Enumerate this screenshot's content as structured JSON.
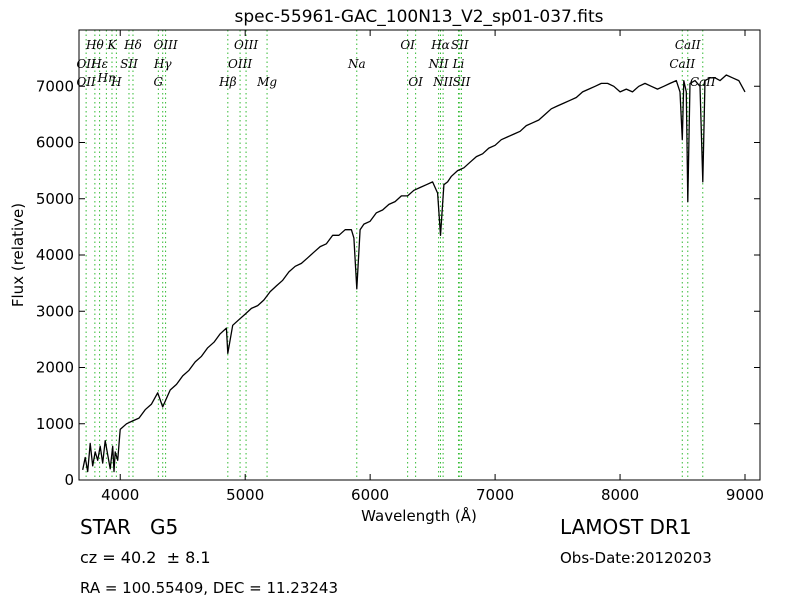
{
  "chart_data": {
    "type": "line",
    "title": "spec-55961-GAC_100N13_V2_sp01-037.fits",
    "xlabel": "Wavelength (Å)",
    "ylabel": "Flux (relative)",
    "xlim": [
      3670,
      9120
    ],
    "ylim": [
      0,
      8000
    ],
    "xticks": [
      4000,
      5000,
      6000,
      7000,
      8000,
      9000
    ],
    "yticks": [
      0,
      1000,
      2000,
      3000,
      4000,
      5000,
      6000,
      7000
    ],
    "grid": false,
    "series": [
      {
        "color": "#000000",
        "x": [
          3700,
          3720,
          3740,
          3760,
          3780,
          3800,
          3820,
          3840,
          3860,
          3880,
          3900,
          3920,
          3940,
          3950,
          3960,
          3980,
          4000,
          4050,
          4100,
          4150,
          4200,
          4250,
          4300,
          4340,
          4400,
          4450,
          4500,
          4550,
          4600,
          4650,
          4700,
          4750,
          4800,
          4850,
          4861,
          4900,
          4950,
          5000,
          5050,
          5100,
          5150,
          5200,
          5250,
          5300,
          5350,
          5400,
          5450,
          5500,
          5550,
          5600,
          5650,
          5700,
          5750,
          5800,
          5850,
          5870,
          5893,
          5920,
          5950,
          6000,
          6050,
          6100,
          6150,
          6200,
          6250,
          6300,
          6350,
          6400,
          6450,
          6500,
          6540,
          6563,
          6590,
          6620,
          6650,
          6700,
          6750,
          6800,
          6850,
          6900,
          6950,
          7000,
          7050,
          7100,
          7150,
          7200,
          7250,
          7300,
          7350,
          7400,
          7450,
          7500,
          7550,
          7600,
          7650,
          7700,
          7750,
          7800,
          7850,
          7900,
          7950,
          8000,
          8050,
          8100,
          8150,
          8200,
          8250,
          8300,
          8350,
          8400,
          8450,
          8480,
          8498,
          8510,
          8530,
          8542,
          8560,
          8600,
          8640,
          8662,
          8680,
          8720,
          8760,
          8800,
          8850,
          8900,
          8950,
          9000
        ],
        "y": [
          180,
          400,
          150,
          650,
          250,
          500,
          350,
          600,
          300,
          700,
          450,
          200,
          600,
          150,
          500,
          350,
          900,
          1000,
          1050,
          1100,
          1250,
          1350,
          1550,
          1300,
          1600,
          1700,
          1850,
          1950,
          2100,
          2200,
          2350,
          2450,
          2600,
          2700,
          2250,
          2750,
          2850,
          2950,
          3050,
          3100,
          3200,
          3350,
          3450,
          3550,
          3700,
          3800,
          3850,
          3950,
          4050,
          4150,
          4200,
          4350,
          4350,
          4450,
          4450,
          4300,
          3400,
          4450,
          4550,
          4600,
          4750,
          4800,
          4900,
          4950,
          5050,
          5050,
          5150,
          5200,
          5250,
          5300,
          5100,
          4350,
          5250,
          5300,
          5400,
          5500,
          5550,
          5650,
          5750,
          5800,
          5900,
          5950,
          6050,
          6100,
          6150,
          6200,
          6300,
          6350,
          6400,
          6500,
          6600,
          6650,
          6700,
          6750,
          6800,
          6900,
          6950,
          7000,
          7050,
          7050,
          7000,
          6900,
          6950,
          6900,
          7000,
          7050,
          7000,
          6950,
          7000,
          7050,
          7100,
          6900,
          6050,
          7100,
          6900,
          4950,
          7050,
          7100,
          7000,
          5300,
          7100,
          7150,
          7150,
          7100,
          7200,
          7150,
          7100,
          6900
        ]
      }
    ],
    "line_markers": [
      {
        "label": "Hθ",
        "x": 3797,
        "row": 0
      },
      {
        "label": "K",
        "x": 3934,
        "row": 0
      },
      {
        "label": "Hδ",
        "x": 4102,
        "row": 0
      },
      {
        "label": "OIII",
        "x": 4363,
        "row": 0
      },
      {
        "label": "OIII",
        "x": 5007,
        "row": 0
      },
      {
        "label": "OI",
        "x": 6300,
        "row": 0
      },
      {
        "label": "Hα",
        "x": 6563,
        "row": 0
      },
      {
        "label": "SII",
        "x": 6717,
        "row": 0
      },
      {
        "label": "CaII",
        "x": 8542,
        "row": 0
      },
      {
        "label": "OII",
        "x": 3727,
        "row": 1
      },
      {
        "label": "Hε",
        "x": 3835,
        "row": 1
      },
      {
        "label": "SII",
        "x": 4070,
        "row": 1
      },
      {
        "label": "Hγ",
        "x": 4340,
        "row": 1
      },
      {
        "label": "OIII",
        "x": 4959,
        "row": 1
      },
      {
        "label": "Na",
        "x": 5893,
        "row": 1
      },
      {
        "label": "NII",
        "x": 6548,
        "row": 1
      },
      {
        "label": "Li",
        "x": 6707,
        "row": 1
      },
      {
        "label": "CaII",
        "x": 8498,
        "row": 1
      },
      {
        "label": "Hη",
        "x": 3889,
        "row": 2
      },
      {
        "label": "OII",
        "x": 3727,
        "row": 3
      },
      {
        "label": "H",
        "x": 3969,
        "row": 3
      },
      {
        "label": "G",
        "x": 4305,
        "row": 3
      },
      {
        "label": "Hβ",
        "x": 4861,
        "row": 3
      },
      {
        "label": "Mg",
        "x": 5175,
        "row": 3
      },
      {
        "label": "OI",
        "x": 6364,
        "row": 3
      },
      {
        "label": "NII",
        "x": 6584,
        "row": 3
      },
      {
        "label": "SII",
        "x": 6731,
        "row": 3
      },
      {
        "label": "CaII",
        "x": 8662,
        "row": 3
      }
    ],
    "marker_color": "#33bb33"
  },
  "info": {
    "class_label": "STAR",
    "subclass": "G5",
    "survey": "LAMOST DR1",
    "cz": "cz = 40.2  ± 8.1",
    "obs_date": "Obs-Date:20120203",
    "coords": "RA = 100.55409, DEC = 11.23243"
  }
}
